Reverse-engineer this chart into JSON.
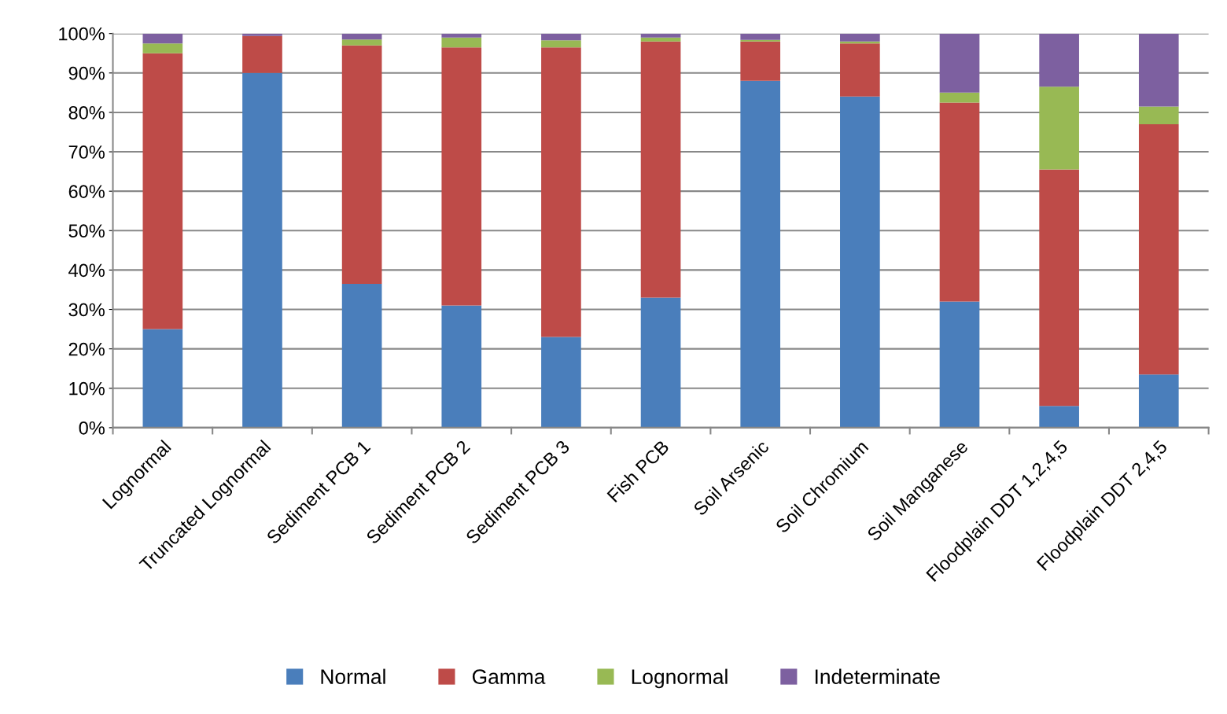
{
  "chart_data": {
    "type": "bar",
    "stacked": true,
    "categories": [
      "Lognormal",
      "Truncated Lognormal",
      "Sediment PCB 1",
      "Sediment PCB 2",
      "Sediment PCB 3",
      "Fish PCB",
      "Soil Arsenic",
      "Soil Chromium",
      "Soil Manganese",
      "Floodplain DDT 1,2,4,5",
      "Floodplain DDT 2,4,5"
    ],
    "series": [
      {
        "name": "Normal",
        "color": "#4a7ebb",
        "values": [
          25,
          90,
          36.5,
          31,
          23,
          33,
          88,
          84,
          32,
          5.5,
          13.5
        ]
      },
      {
        "name": "Gamma",
        "color": "#be4b48",
        "values": [
          70,
          9.4,
          60.5,
          65.5,
          73.5,
          65,
          10,
          13.5,
          50.5,
          60,
          63.5
        ]
      },
      {
        "name": "Lognormal",
        "color": "#98b954",
        "values": [
          2.5,
          0,
          1.5,
          2.5,
          1.8,
          1,
          0.4,
          0.5,
          2.5,
          21,
          4.5
        ]
      },
      {
        "name": "Indeterminate",
        "color": "#7d60a0",
        "values": [
          2.5,
          0.6,
          1.5,
          1,
          1.7,
          1,
          1.6,
          2,
          15,
          13.5,
          18.5
        ]
      }
    ],
    "ylim": [
      0,
      100
    ],
    "yticks": [
      {
        "value": 0,
        "label": "0%"
      },
      {
        "value": 10,
        "label": "10%"
      },
      {
        "value": 20,
        "label": "20%"
      },
      {
        "value": 30,
        "label": "30%"
      },
      {
        "value": 40,
        "label": "40%"
      },
      {
        "value": 50,
        "label": "50%"
      },
      {
        "value": 60,
        "label": "60%"
      },
      {
        "value": 70,
        "label": "70%"
      },
      {
        "value": 80,
        "label": "80%"
      },
      {
        "value": 90,
        "label": "90%"
      },
      {
        "value": 100,
        "label": "100%"
      }
    ],
    "grid": "y",
    "legend": "bottom"
  }
}
